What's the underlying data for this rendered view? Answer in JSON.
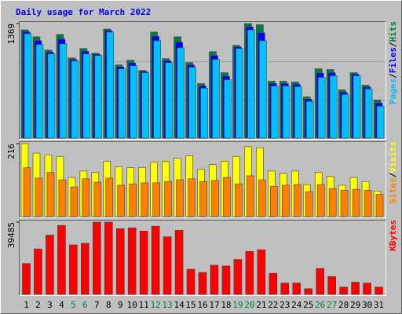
{
  "title": "Daily usage for March 2022",
  "legend_separator": "/",
  "chart_data": [
    {
      "type": "bar",
      "ylim": [
        0,
        1369
      ],
      "yticks": [
        1369
      ],
      "series": [
        {
          "name": "Hits",
          "color": "#008040",
          "values": [
            1294,
            1211,
            1052,
            1239,
            959,
            1071,
            1015,
            1304,
            875,
            931,
            810,
            1267,
            950,
            1211,
            903,
            652,
            1034,
            782,
            1108,
            1369,
            1355,
            680,
            680,
            671,
            494,
            829,
            820,
            577,
            782,
            633,
            456
          ]
        },
        {
          "name": "Files",
          "color": "#0000ff",
          "values": [
            1271,
            1165,
            1029,
            1183,
            940,
            1038,
            1001,
            1285,
            852,
            898,
            796,
            1215,
            926,
            1145,
            875,
            624,
            987,
            740,
            1089,
            1331,
            1259,
            652,
            652,
            643,
            466,
            777,
            782,
            549,
            763,
            610,
            419
          ]
        },
        {
          "name": "Pages",
          "color": "#00c0ff",
          "values": [
            1248,
            1118,
            1006,
            1127,
            922,
            1006,
            987,
            1267,
            829,
            866,
            782,
            1164,
            903,
            1080,
            847,
            596,
            941,
            698,
            1071,
            1294,
            1164,
            624,
            624,
            615,
            438,
            726,
            745,
            521,
            745,
            587,
            382
          ]
        }
      ]
    },
    {
      "type": "bar",
      "ylim": [
        0,
        216
      ],
      "yticks": [
        216
      ],
      "series": [
        {
          "name": "Visits",
          "color": "#ffff00",
          "values": [
            216,
            188,
            183,
            178,
            116,
            135,
            131,
            164,
            147,
            145,
            145,
            161,
            164,
            173,
            180,
            140,
            154,
            164,
            178,
            207,
            204,
            135,
            128,
            135,
            95,
            131,
            119,
            93,
            116,
            104,
            76
          ]
        },
        {
          "name": "Sites",
          "color": "#ff8000",
          "values": [
            145,
            114,
            131,
            109,
            88,
            112,
            102,
            114,
            93,
            97,
            100,
            100,
            104,
            109,
            112,
            104,
            107,
            116,
            97,
            121,
            109,
            90,
            93,
            95,
            74,
            95,
            83,
            78,
            81,
            78,
            66
          ]
        }
      ]
    },
    {
      "type": "bar",
      "ylim": [
        0,
        39485
      ],
      "yticks": [
        39485
      ],
      "categories": [
        "1",
        "2",
        "3",
        "4",
        "5",
        "6",
        "7",
        "8",
        "9",
        "10",
        "11",
        "12",
        "13",
        "14",
        "15",
        "16",
        "17",
        "18",
        "19",
        "20",
        "21",
        "22",
        "23",
        "24",
        "25",
        "26",
        "27",
        "28",
        "29",
        "30",
        "31"
      ],
      "highlight_indices": [
        4,
        5,
        11,
        12,
        18,
        19,
        25,
        26
      ],
      "highlight_color": "#008040",
      "series": [
        {
          "name": "KBytes",
          "color": "#ff0000",
          "values": [
            16859,
            24845,
            32386,
            37710,
            27063,
            27950,
            39485,
            39485,
            35935,
            36380,
            34605,
            37266,
            31499,
            35048,
            13753,
            11978,
            15971,
            15528,
            19077,
            23514,
            24401,
            11535,
            6211,
            6211,
            3106,
            14197,
            9760,
            3993,
            6655,
            6211,
            3993
          ]
        }
      ]
    }
  ]
}
